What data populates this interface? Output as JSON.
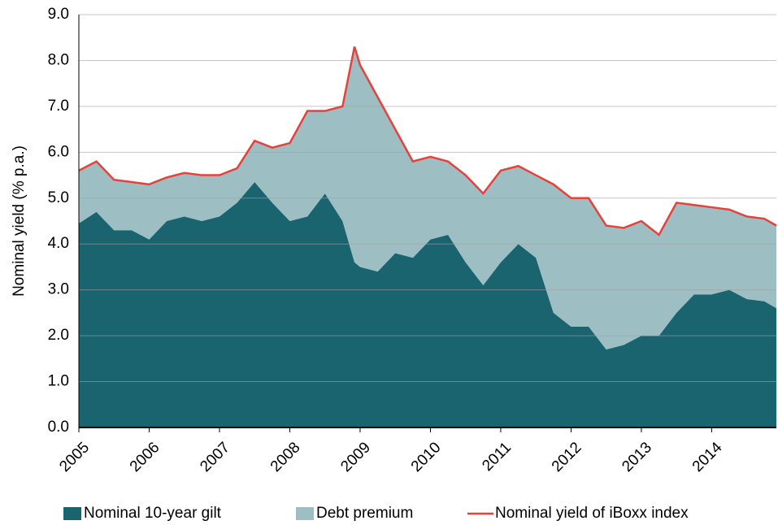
{
  "chart_data": {
    "type": "stacked_area_line",
    "y_label": "Nominal yield (% p.a.)",
    "x": [
      2005,
      2005.25,
      2005.5,
      2005.75,
      2006,
      2006.25,
      2006.5,
      2006.75,
      2007,
      2007.25,
      2007.5,
      2007.75,
      2008,
      2008.25,
      2008.5,
      2008.75,
      2008.92,
      2009,
      2009.25,
      2009.5,
      2009.75,
      2010,
      2010.25,
      2010.5,
      2010.75,
      2011,
      2011.25,
      2011.5,
      2011.75,
      2012,
      2012.25,
      2012.5,
      2012.75,
      2013,
      2013.25,
      2013.5,
      2013.75,
      2014,
      2014.25,
      2014.5,
      2014.75,
      2014.92
    ],
    "series": [
      {
        "name": "Nominal 10-year gilt",
        "color": "#1a6470",
        "stack": true,
        "values": [
          4.45,
          4.7,
          4.3,
          4.3,
          4.1,
          4.5,
          4.6,
          4.5,
          4.6,
          4.9,
          5.35,
          4.9,
          4.5,
          4.6,
          5.1,
          4.5,
          3.6,
          3.5,
          3.4,
          3.8,
          3.7,
          4.1,
          4.2,
          3.6,
          3.1,
          3.6,
          4.0,
          3.7,
          2.5,
          2.2,
          2.2,
          1.7,
          1.8,
          2.0,
          2.0,
          2.5,
          2.9,
          2.9,
          3.0,
          2.8,
          2.75,
          2.6
        ]
      },
      {
        "name": "Debt premium",
        "color": "#9dbfc3",
        "stack": true,
        "values": [
          1.15,
          1.1,
          1.1,
          1.05,
          1.2,
          0.95,
          0.95,
          1.0,
          0.9,
          0.75,
          0.9,
          1.2,
          1.7,
          2.3,
          1.8,
          2.5,
          4.7,
          4.4,
          3.8,
          2.7,
          2.1,
          1.8,
          1.6,
          1.9,
          2.0,
          2.0,
          1.7,
          1.8,
          2.8,
          2.8,
          2.8,
          2.7,
          2.55,
          2.5,
          2.2,
          2.4,
          1.95,
          1.9,
          1.75,
          1.8,
          1.8,
          1.8
        ]
      },
      {
        "name": "Nominal yield of iBoxx index",
        "color": "#e8403a",
        "stack": false,
        "values": [
          5.6,
          5.8,
          5.4,
          5.35,
          5.3,
          5.45,
          5.55,
          5.5,
          5.5,
          5.65,
          6.25,
          6.1,
          6.2,
          6.9,
          6.9,
          7.0,
          8.3,
          7.9,
          7.2,
          6.5,
          5.8,
          5.9,
          5.8,
          5.5,
          5.1,
          5.6,
          5.7,
          5.5,
          5.3,
          5.0,
          5.0,
          4.4,
          4.35,
          4.5,
          4.2,
          4.9,
          4.85,
          4.8,
          4.75,
          4.6,
          4.55,
          4.4
        ]
      }
    ],
    "xlim": [
      2005,
      2014.92
    ],
    "xticks": [
      2005,
      2006,
      2007,
      2008,
      2009,
      2010,
      2011,
      2012,
      2013,
      2014
    ],
    "ylim": [
      0,
      9
    ],
    "yticks": [
      {
        "value": 0,
        "label": "0.0"
      },
      {
        "value": 1,
        "label": "1.0"
      },
      {
        "value": 2,
        "label": "2.0"
      },
      {
        "value": 3,
        "label": "3.0"
      },
      {
        "value": 4,
        "label": "4.0"
      },
      {
        "value": 5,
        "label": "5.0"
      },
      {
        "value": 6,
        "label": "6.0"
      },
      {
        "value": 7,
        "label": "7.0"
      },
      {
        "value": 8,
        "label": "8.0"
      },
      {
        "value": 9,
        "label": "9.0"
      }
    ],
    "grid": true,
    "legend": "bottom"
  }
}
